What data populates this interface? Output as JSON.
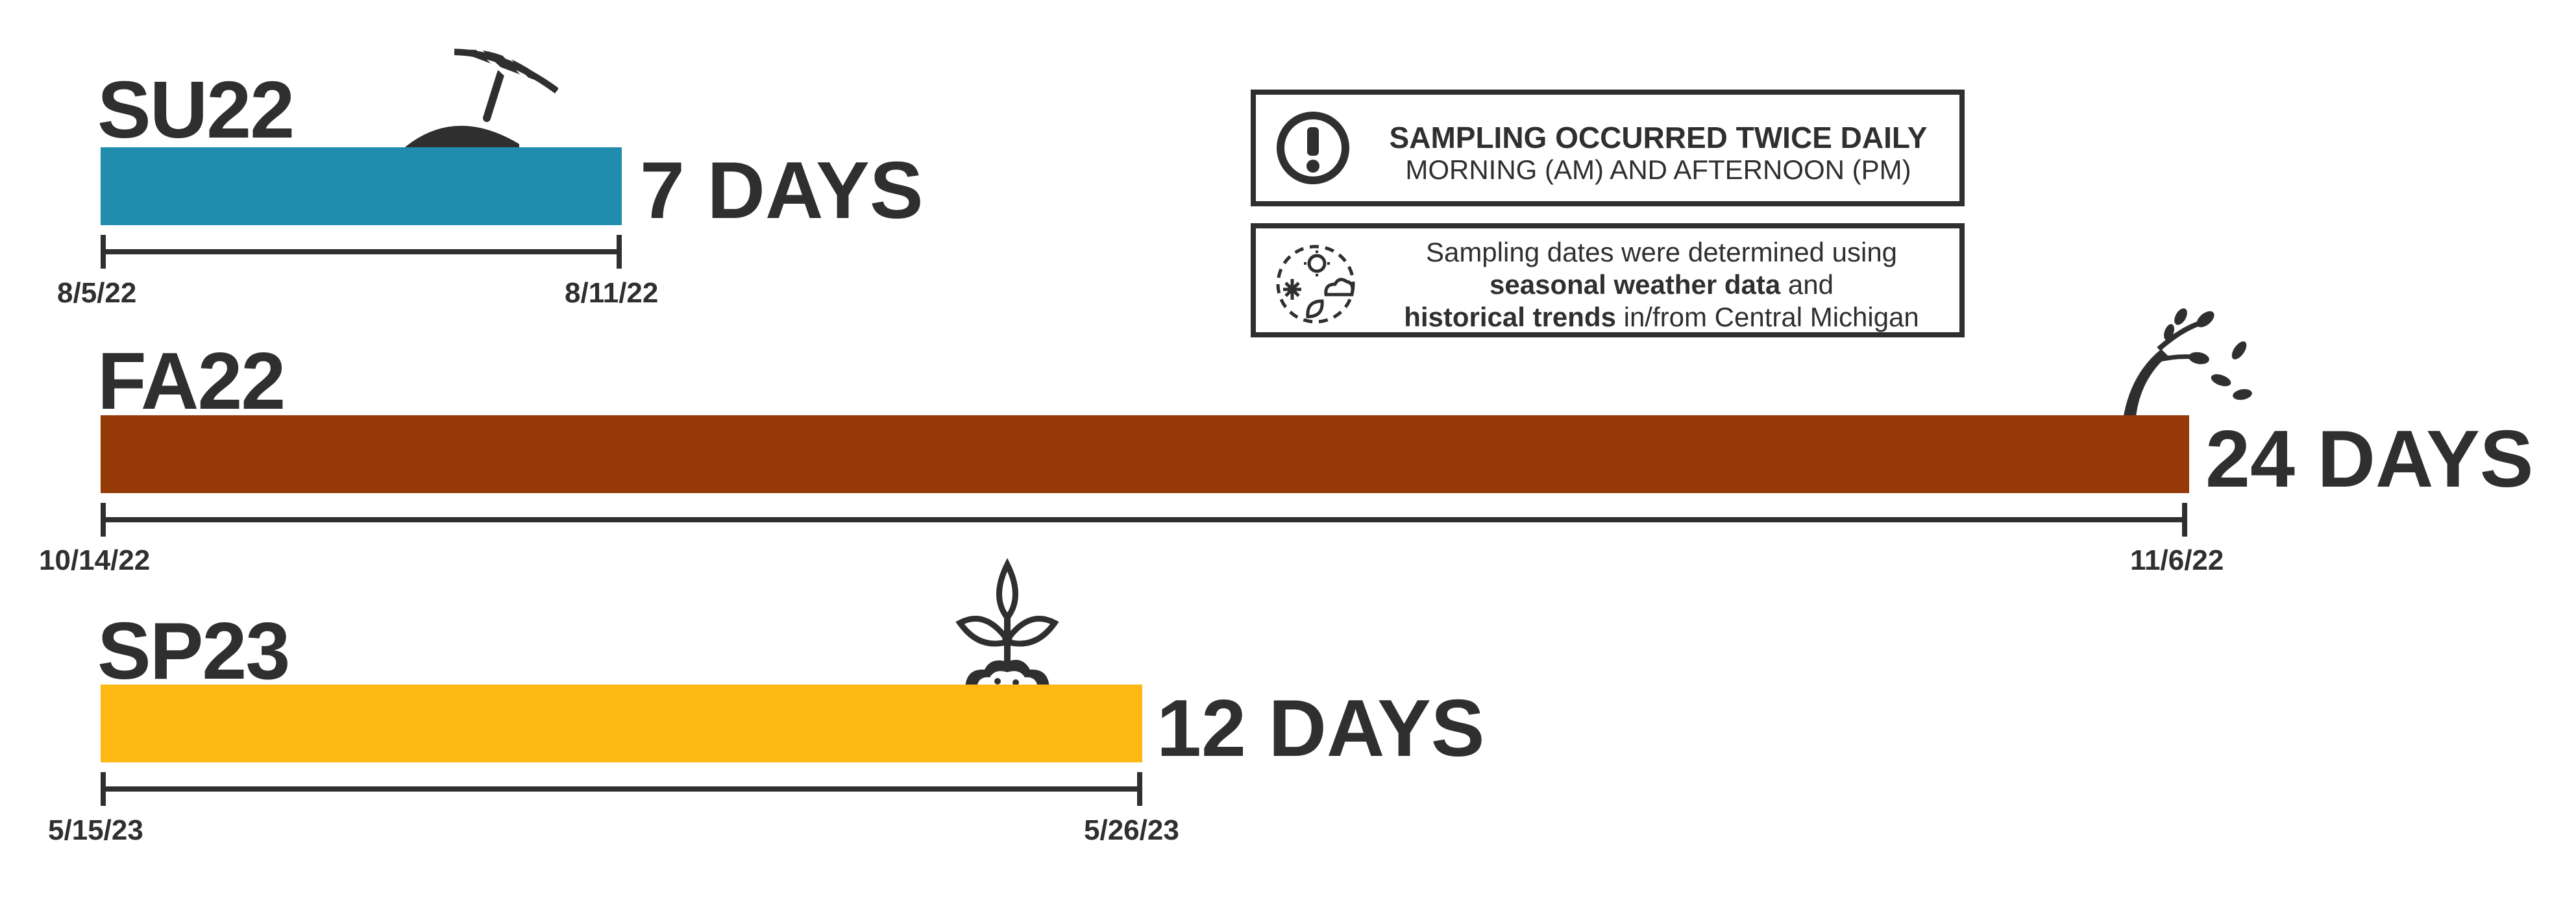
{
  "colors": {
    "summer": "#218dae",
    "fall": "#953a07",
    "spring": "#fdb813",
    "ink": "#2f2f2f"
  },
  "seasons": [
    {
      "label": "SU22",
      "duration": "7 DAYS",
      "start_date": "8/5/22",
      "end_date": "8/11/22",
      "days": 7,
      "icon": "beach-umbrella-icon"
    },
    {
      "label": "FA22",
      "duration": "24 DAYS",
      "start_date": "10/14/22",
      "end_date": "11/6/22",
      "days": 24,
      "icon": "windy-tree-icon"
    },
    {
      "label": "SP23",
      "duration": "12 DAYS",
      "start_date": "5/15/23",
      "end_date": "5/26/23",
      "days": 12,
      "icon": "sprout-icon"
    }
  ],
  "info_box_1": {
    "icon": "exclamation-circle-icon",
    "line1": "SAMPLING OCCURRED TWICE DAILY",
    "line2": "MORNING (AM) AND AFTERNOON (PM)"
  },
  "info_box_2": {
    "icon": "weather-icon",
    "line1": "Sampling dates were determined using",
    "line2_bold": "seasonal weather data",
    "line2_rest": " and",
    "line3_bold": "historical trends",
    "line3_rest": " in/from Central Michigan"
  }
}
